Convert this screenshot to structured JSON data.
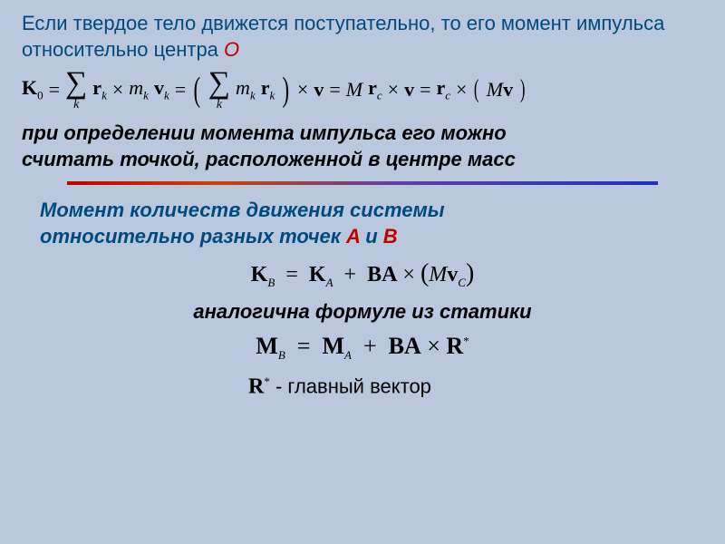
{
  "background_color": "#b9c8dc",
  "text_color_blue": "#004a7f",
  "text_color_red": "#c00000",
  "text_color_black": "#000000",
  "hr_gradient": [
    "#c00000",
    "#d04000",
    "#6040a0",
    "#2030c0"
  ],
  "font_body": "Arial",
  "font_math": "Times New Roman",
  "body_fontsize_pt": 17,
  "para1": {
    "part1": "Если твердое тело движется поступательно",
    "part2": ", то его момент импульса относительно центра ",
    "accent_O": "О"
  },
  "eq1": {
    "K": "K",
    "K_sub": "0",
    "eq": "=",
    "sigma": "∑",
    "sigma_sub": "k",
    "r": "r",
    "r_sub": "k",
    "times": "×",
    "m": "m",
    "m_sub": "k",
    "v": "v",
    "v_sub": "k",
    "lparen": "(",
    "rparen": ")",
    "M": "M",
    "rc": "r",
    "rc_sub": "c"
  },
  "para2": {
    "line1": "при определении  момента импульса его можно",
    "line2": "считать точкой, расположенной в центре масс"
  },
  "para3": {
    "part1": "Момент количеств движения",
    "part2": " системы",
    "line2a": "относительно разных точек ",
    "A": "A",
    "and": " и ",
    "B": "B"
  },
  "eq2": {
    "K": "K",
    "B": "B",
    "eq": "=",
    "A": "A",
    "plus": "+",
    "BA": "BA",
    "times": "×",
    "lparen": "(",
    "M": "M",
    "v": "v",
    "C": "C",
    "rparen": ")"
  },
  "para4": {
    "text": "аналогична формуле из статики"
  },
  "eq3": {
    "M": "M",
    "B": "B",
    "eq": "=",
    "A": "A",
    "plus": "+",
    "BA": "BA",
    "times": "×",
    "R": "R",
    "star": "*"
  },
  "footer": {
    "R": "R",
    "star": "*",
    "dash": " - ",
    "text": "главный вектор"
  }
}
